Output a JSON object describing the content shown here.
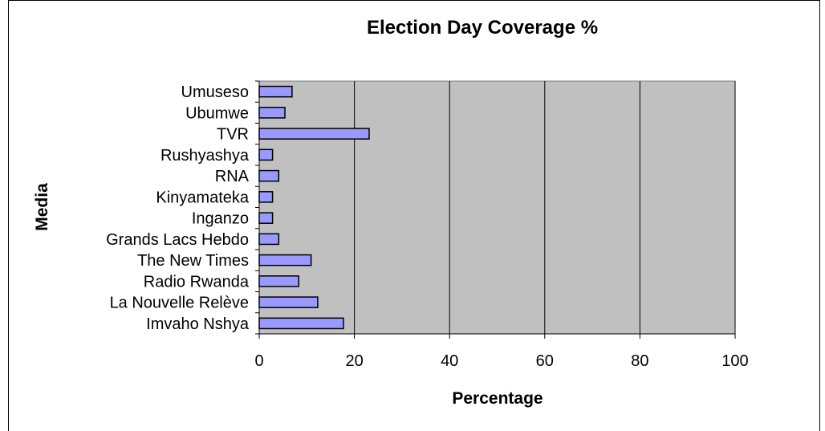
{
  "chart_data": {
    "type": "bar",
    "orientation": "horizontal",
    "title": "Election Day Coverage %",
    "xlabel": "Percentage",
    "ylabel": "Media",
    "xlim": [
      0,
      100
    ],
    "x_ticks": [
      0,
      20,
      40,
      60,
      80,
      100
    ],
    "categories": [
      "Imvaho Nshya",
      "La Nouvelle Relève",
      "Radio Rwanda",
      "The New Times",
      "Grands Lacs Hebdo",
      "Inganzo",
      "Kinyamateka",
      "RNA",
      "Rushyashya",
      "TVR",
      "Ubumwe",
      "Umuseso"
    ],
    "values": [
      17.7,
      12.3,
      8.3,
      10.9,
      4.1,
      2.8,
      2.8,
      4.1,
      2.8,
      23.1,
      5.4,
      6.9
    ],
    "bar_color": "#9999ff",
    "plot_background": "#c0c0c0",
    "grid": "vertical",
    "legend": "none"
  }
}
